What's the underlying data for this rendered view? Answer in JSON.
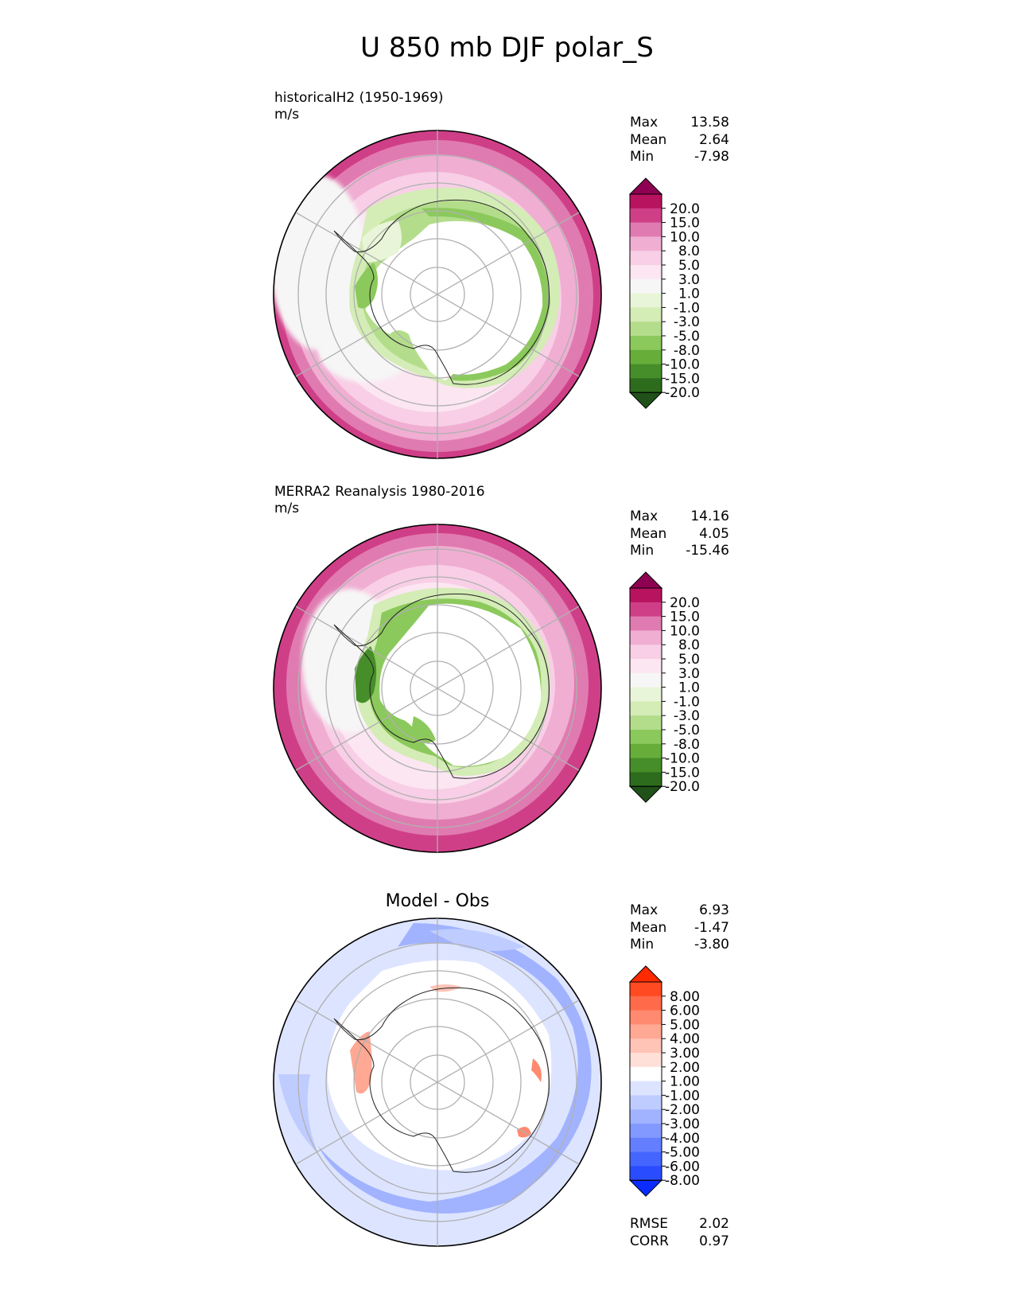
{
  "title": "U 850 mb DJF polar_S",
  "panels": [
    {
      "label_line1": "historicalH2 (1950-1969)",
      "label_line2": "m/s",
      "stats": [
        {
          "name": "Max",
          "value": "13.58"
        },
        {
          "name": "Mean",
          "value": "2.64"
        },
        {
          "name": "Min",
          "value": "-7.98"
        }
      ]
    },
    {
      "label_line1": "MERRA2 Reanalysis 1980-2016",
      "label_line2": "m/s",
      "stats": [
        {
          "name": "Max",
          "value": "14.16"
        },
        {
          "name": "Mean",
          "value": "4.05"
        },
        {
          "name": "Min",
          "value": "-15.46"
        }
      ]
    },
    {
      "title": "Model - Obs",
      "stats": [
        {
          "name": "Max",
          "value": "6.93"
        },
        {
          "name": "Mean",
          "value": "-1.47"
        },
        {
          "name": "Min",
          "value": "-3.80"
        }
      ],
      "metrics": [
        {
          "name": "RMSE",
          "value": "2.02"
        },
        {
          "name": "CORR",
          "value": "0.97"
        }
      ]
    }
  ],
  "colorbars": {
    "field": {
      "ticks": [
        "20.0",
        "15.0",
        "10.0",
        "8.0",
        "5.0",
        "3.0",
        "1.0",
        "-1.0",
        "-3.0",
        "-5.0",
        "-8.0",
        "-10.0",
        "-15.0",
        "-20.0"
      ],
      "colors": [
        "#8e0152",
        "#b7135f",
        "#cf3f87",
        "#e07bb1",
        "#f0aed2",
        "#f8cfe6",
        "#fbe6f1",
        "#f6f6f6",
        "#e9f5d8",
        "#d4ecb6",
        "#b3dd8b",
        "#8cc95c",
        "#66ad3a",
        "#468e29",
        "#2d6c1d",
        "#1f5119"
      ]
    },
    "diff": {
      "ticks": [
        "8.00",
        "6.00",
        "5.00",
        "4.00",
        "3.00",
        "2.00",
        "1.00",
        "-1.00",
        "-2.00",
        "-3.00",
        "-4.00",
        "-5.00",
        "-6.00",
        "-8.00"
      ],
      "colors": [
        "#ff2a00",
        "#ff4a22",
        "#ff6b4a",
        "#ff8a70",
        "#ffa894",
        "#ffc4b6",
        "#ffe0d8",
        "#ffffff",
        "#dde4ff",
        "#bfccff",
        "#a1b3ff",
        "#8299ff",
        "#637fff",
        "#4466ff",
        "#2a4cff",
        "#0a2cff"
      ]
    }
  },
  "chart_data": [
    {
      "type": "heatmap",
      "title": "historicalH2 (1950-1969)",
      "units": "m/s",
      "projection": "south polar stereographic",
      "stats": {
        "max": 13.58,
        "mean": 2.64,
        "min": -7.98
      },
      "levels": [
        -20,
        -15,
        -10,
        -8,
        -5,
        -3,
        -1,
        1,
        3,
        5,
        8,
        10,
        15,
        20
      ]
    },
    {
      "type": "heatmap",
      "title": "MERRA2 Reanalysis 1980-2016",
      "units": "m/s",
      "projection": "south polar stereographic",
      "stats": {
        "max": 14.16,
        "mean": 4.05,
        "min": -15.46
      },
      "levels": [
        -20,
        -15,
        -10,
        -8,
        -5,
        -3,
        -1,
        1,
        3,
        5,
        8,
        10,
        15,
        20
      ]
    },
    {
      "type": "heatmap",
      "title": "Model - Obs",
      "projection": "south polar stereographic",
      "stats": {
        "max": 6.93,
        "mean": -1.47,
        "min": -3.8,
        "rmse": 2.02,
        "corr": 0.97
      },
      "levels": [
        -8,
        -6,
        -5,
        -4,
        -3,
        -2,
        -1,
        1,
        2,
        3,
        4,
        5,
        6,
        8
      ]
    }
  ]
}
